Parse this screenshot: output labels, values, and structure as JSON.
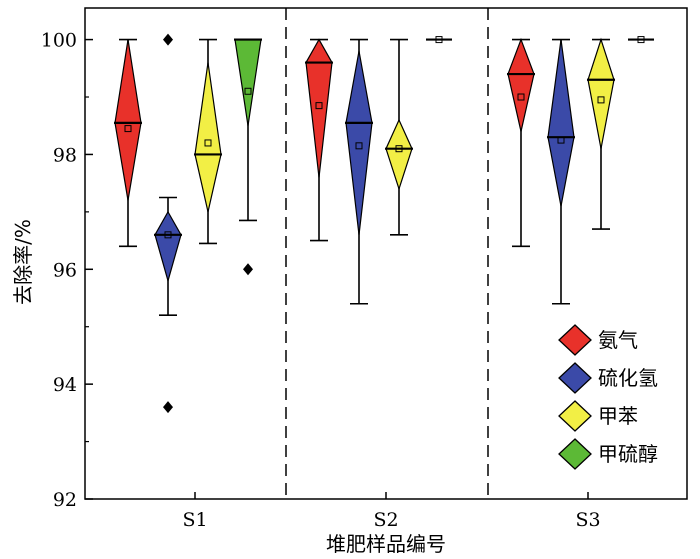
{
  "chart_data": {
    "type": "box",
    "xlabel": "堆肥样品编号",
    "ylabel": "去除率/%",
    "ylim": [
      92,
      100.55
    ],
    "yticks": [
      92,
      94,
      96,
      98,
      100
    ],
    "groups": [
      "S1",
      "S2",
      "S3"
    ],
    "legend_position": "bottom-right",
    "series": [
      {
        "name": "氨气",
        "color": "#e8312a"
      },
      {
        "name": "硫化氢",
        "color": "#3b4aa8"
      },
      {
        "name": "甲苯",
        "color": "#f2ef45"
      },
      {
        "name": "甲硫醇",
        "color": "#5cb936"
      }
    ],
    "boxes": [
      {
        "group": "S1",
        "series": "氨气",
        "min": 96.4,
        "q1": 97.2,
        "median": 98.55,
        "q3": 100.0,
        "max": 100.0,
        "mean": 98.45,
        "outliers": []
      },
      {
        "group": "S1",
        "series": "硫化氢",
        "min": 95.2,
        "q1": 95.8,
        "median": 96.6,
        "q3": 97.0,
        "max": 97.25,
        "mean": 96.6,
        "outliers": [
          100.0,
          93.6
        ]
      },
      {
        "group": "S1",
        "series": "甲苯",
        "min": 96.45,
        "q1": 97.0,
        "median": 98.0,
        "q3": 99.6,
        "max": 100.0,
        "mean": 98.2,
        "outliers": []
      },
      {
        "group": "S1",
        "series": "甲硫醇",
        "min": 96.85,
        "q1": 98.5,
        "median": 100.0,
        "q3": 100.0,
        "max": 100.0,
        "mean": 99.1,
        "outliers": [
          96.0
        ]
      },
      {
        "group": "S2",
        "series": "氨气",
        "min": 96.5,
        "q1": 97.6,
        "median": 99.6,
        "q3": 100.0,
        "max": 100.0,
        "mean": 98.85,
        "outliers": []
      },
      {
        "group": "S2",
        "series": "硫化氢",
        "min": 95.4,
        "q1": 96.6,
        "median": 98.55,
        "q3": 99.8,
        "max": 100.0,
        "mean": 98.15,
        "outliers": []
      },
      {
        "group": "S2",
        "series": "甲苯",
        "min": 96.6,
        "q1": 97.4,
        "median": 98.1,
        "q3": 98.6,
        "max": 100.0,
        "mean": 98.1,
        "outliers": []
      },
      {
        "group": "S2",
        "series": "甲硫醇",
        "min": 100.0,
        "q1": 100.0,
        "median": 100.0,
        "q3": 100.0,
        "max": 100.0,
        "mean": 100.0,
        "outliers": []
      },
      {
        "group": "S3",
        "series": "氨气",
        "min": 96.4,
        "q1": 98.4,
        "median": 99.4,
        "q3": 100.0,
        "max": 100.0,
        "mean": 99.0,
        "outliers": []
      },
      {
        "group": "S3",
        "series": "硫化氢",
        "min": 95.4,
        "q1": 97.1,
        "median": 98.3,
        "q3": 100.0,
        "max": 100.0,
        "mean": 98.25,
        "outliers": []
      },
      {
        "group": "S3",
        "series": "甲苯",
        "min": 96.7,
        "q1": 98.1,
        "median": 99.3,
        "q3": 100.0,
        "max": 100.0,
        "mean": 98.95,
        "outliers": []
      },
      {
        "group": "S3",
        "series": "甲硫醇",
        "min": 100.0,
        "q1": 100.0,
        "median": 100.0,
        "q3": 100.0,
        "max": 100.0,
        "mean": 100.0,
        "outliers": []
      }
    ]
  }
}
